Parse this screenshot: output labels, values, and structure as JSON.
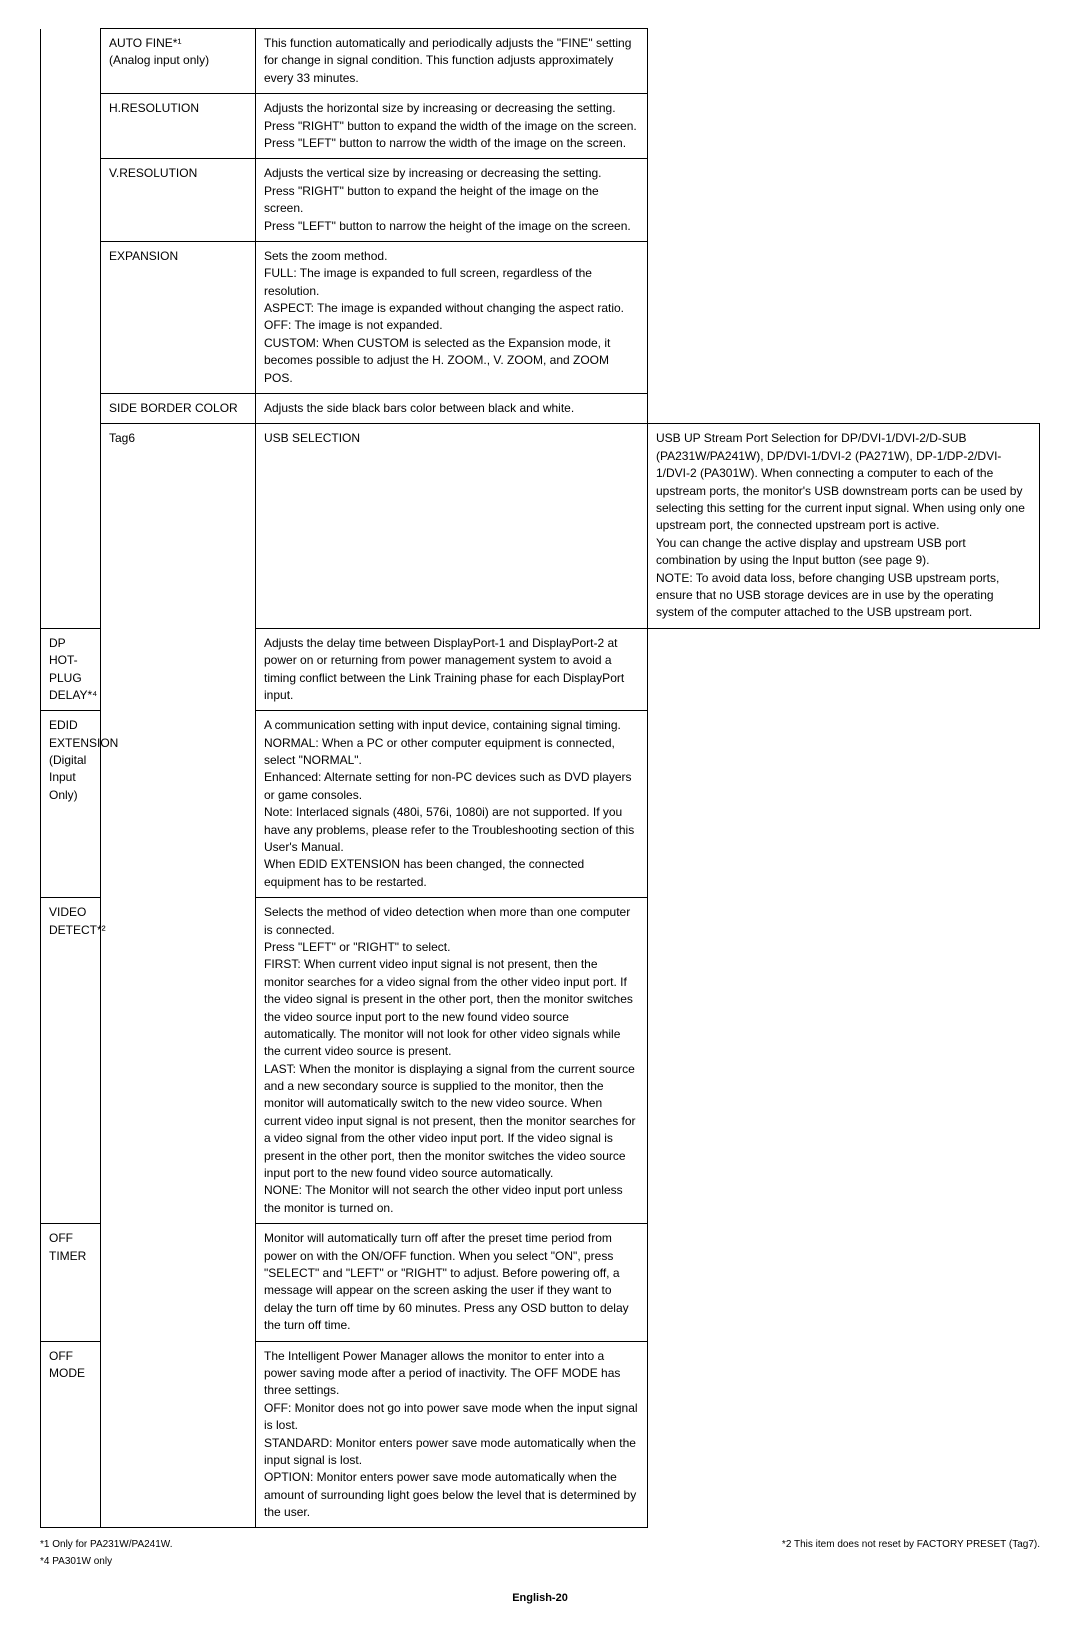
{
  "table": {
    "rows": [
      {
        "tag": "",
        "label": "AUTO FINE*¹\n(Analog input only)",
        "desc": "This function automatically and periodically adjusts the \"FINE\" setting for change in signal condition. This function adjusts approximately every 33 minutes.",
        "tagBorderTop": true,
        "tagRowspan": 6,
        "showTag": true
      },
      {
        "label": "H.RESOLUTION",
        "desc": "Adjusts the horizontal size by increasing or decreasing the setting.\nPress \"RIGHT\" button to expand the width of the image on the screen.\nPress \"LEFT\" button to narrow the width of the image on the screen."
      },
      {
        "label": "V.RESOLUTION",
        "desc": "Adjusts the vertical size by increasing or decreasing the setting.\nPress \"RIGHT\" button to expand the height of the image on the screen.\nPress \"LEFT\" button to narrow the height of the image on the screen."
      },
      {
        "label": "EXPANSION",
        "desc": "Sets the zoom method.\nFULL: The image is expanded to full screen, regardless of the resolution.\nASPECT: The image is expanded without changing the aspect ratio.\nOFF: The image is not expanded.\nCUSTOM: When CUSTOM is selected as the Expansion mode, it becomes possible to adjust the H. ZOOM., V. ZOOM, and ZOOM POS."
      },
      {
        "label": "SIDE BORDER COLOR",
        "desc": "Adjusts the side black bars color between black and white."
      },
      {
        "tag": "Tag6",
        "label": "USB SELECTION",
        "desc": "USB UP Stream Port Selection for DP/DVI-1/DVI-2/D-SUB (PA231W/PA241W), DP/DVI-1/DVI-2 (PA271W), DP-1/DP-2/DVI-1/DVI-2 (PA301W). When connecting a computer to each of the upstream ports, the monitor's USB downstream ports can be used by selecting this setting for the current input signal. When using only one upstream port, the connected upstream port is active.\nYou can change the active display and upstream USB port combination by using the Input button (see page 9).\nNOTE: To avoid data loss, before changing USB upstream ports, ensure that no USB storage devices are in use by the operating system of the computer attached to the USB upstream port.",
        "tagBorderTop": true,
        "tagRowspan": 6,
        "showTag": true
      },
      {
        "label": "DP HOT-PLUG DELAY*⁴",
        "desc": "Adjusts the delay time between DisplayPort-1 and DisplayPort-2 at power on or returning from power management system to avoid a timing conflict between the Link Training phase for each DisplayPort input."
      },
      {
        "label": "EDID EXTENSION\n(Digital Input Only)",
        "desc": "A communication setting with input device, containing signal timing.\nNORMAL: When a PC or other computer equipment is connected, select \"NORMAL\".\nEnhanced: Alternate setting for non-PC devices such as DVD players or game consoles.\nNote: Interlaced signals (480i, 576i, 1080i) are not supported. If you have any problems, please refer to the Troubleshooting section of this User's Manual.\nWhen EDID EXTENSION has been changed, the connected equipment has to be restarted."
      },
      {
        "label": "VIDEO DETECT*²",
        "desc": "Selects the method of video detection when more than one computer is connected.\nPress \"LEFT\" or \"RIGHT\" to select.\nFIRST: When current video input signal is not present, then the monitor searches for a video signal from the other video input port. If the video signal is present in the other port, then the monitor switches the video source input port to the new found video source automatically. The monitor will not look for other video signals while the current video source is present.\nLAST: When the monitor is displaying a signal from the current source and a new secondary source is supplied to the monitor, then the monitor will automatically switch to the new video source. When current video input signal is not present, then the monitor searches for a video signal from the other video input port. If the video signal is present in the other port, then the monitor switches the video source input port to the new found video source automatically.\nNONE: The Monitor will not search the other video input port unless the monitor is turned on."
      },
      {
        "label": "OFF TIMER",
        "desc": "Monitor will automatically turn off after the preset time period from power on with the ON/OFF function. When you select \"ON\", press \"SELECT\" and \"LEFT\" or \"RIGHT\" to adjust. Before powering off, a message will appear on the screen asking the user if they want to delay the turn off time by 60 minutes. Press any OSD button to delay the turn off time."
      },
      {
        "label": "OFF MODE",
        "desc": "The Intelligent Power Manager allows the monitor to enter into a power saving mode after a period of inactivity. The OFF MODE has three settings.\nOFF: Monitor does not go into power save mode when the input signal is lost.\nSTANDARD: Monitor enters power save mode automatically when the input signal is lost.\nOPTION: Monitor enters power save mode automatically when the amount of surrounding light goes below the level that is determined by the user."
      }
    ]
  },
  "footnotes": {
    "left1": "*1  Only for PA231W/PA241W.",
    "right1": "*2 This item does not reset by FACTORY PRESET (Tag7).",
    "left2": "*4 PA301W only"
  },
  "pageNumber": "English-20"
}
